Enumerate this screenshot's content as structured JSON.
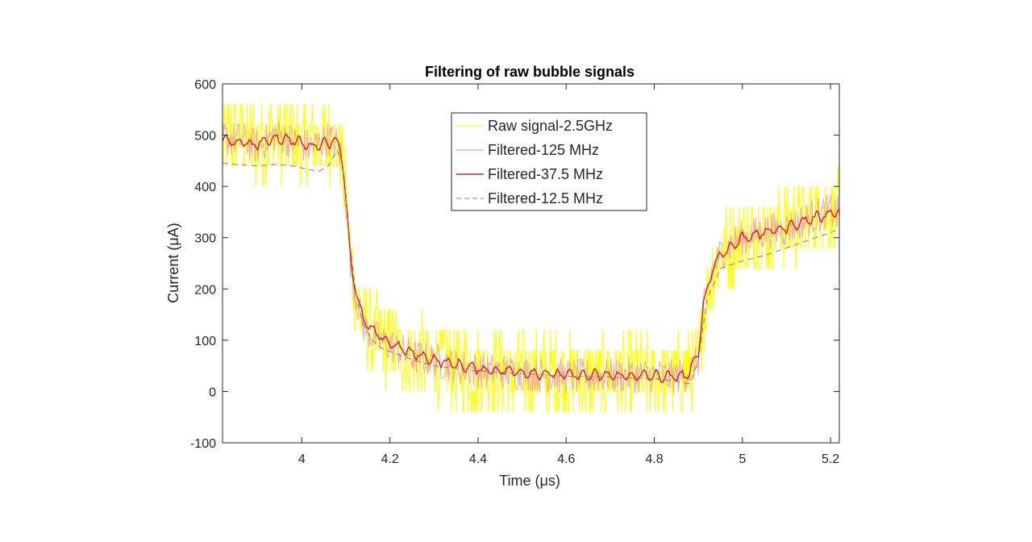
{
  "chart_data": {
    "type": "line",
    "title": "Filtering of raw bubble signals",
    "xlabel": "Time (μs)",
    "ylabel": "Current (μA)",
    "xlim": [
      3.82,
      5.22
    ],
    "ylim": [
      -100,
      600
    ],
    "xticks": [
      {
        "value": 4.0,
        "label": "4"
      },
      {
        "value": 4.2,
        "label": "4.2"
      },
      {
        "value": 4.4,
        "label": "4.4"
      },
      {
        "value": 4.6,
        "label": "4.6"
      },
      {
        "value": 4.8,
        "label": "4.8"
      },
      {
        "value": 5.0,
        "label": "5"
      },
      {
        "value": 5.2,
        "label": "5.2"
      }
    ],
    "yticks": [
      {
        "value": -100,
        "label": "-100"
      },
      {
        "value": 0,
        "label": "0"
      },
      {
        "value": 100,
        "label": "100"
      },
      {
        "value": 200,
        "label": "200"
      },
      {
        "value": 300,
        "label": "300"
      },
      {
        "value": 400,
        "label": "400"
      },
      {
        "value": 500,
        "label": "500"
      },
      {
        "value": 600,
        "label": "600"
      }
    ],
    "grid": false,
    "legend_position": "top-center",
    "series": [
      {
        "name": "Raw signal-2.5GHz",
        "color": "#ffff00",
        "style": "solid",
        "x": [
          3.82,
          3.86,
          3.9,
          3.94,
          3.98,
          4.02,
          4.06,
          4.08,
          4.09,
          4.1,
          4.11,
          4.12,
          4.13,
          4.14,
          4.16,
          4.18,
          4.2,
          4.25,
          4.3,
          4.35,
          4.4,
          4.5,
          4.6,
          4.7,
          4.8,
          4.85,
          4.88,
          4.9,
          4.91,
          4.93,
          4.95,
          4.98,
          5.0,
          5.05,
          5.1,
          5.15,
          5.2,
          5.22
        ],
        "y": [
          490,
          500,
          480,
          500,
          490,
          480,
          490,
          480,
          460,
          380,
          260,
          200,
          160,
          130,
          110,
          100,
          90,
          70,
          60,
          50,
          40,
          35,
          30,
          30,
          30,
          30,
          40,
          60,
          150,
          230,
          270,
          290,
          300,
          310,
          320,
          340,
          350,
          340
        ]
      },
      {
        "name": "Filtered-125 MHz",
        "color": "#f0a8a0",
        "style": "solid",
        "x": [
          3.82,
          3.86,
          3.9,
          3.94,
          3.98,
          4.02,
          4.06,
          4.08,
          4.09,
          4.1,
          4.11,
          4.12,
          4.13,
          4.14,
          4.16,
          4.18,
          4.2,
          4.25,
          4.3,
          4.35,
          4.4,
          4.5,
          4.6,
          4.7,
          4.8,
          4.85,
          4.88,
          4.9,
          4.91,
          4.93,
          4.95,
          4.98,
          5.0,
          5.05,
          5.1,
          5.15,
          5.2,
          5.22
        ],
        "y": [
          495,
          492,
          478,
          502,
          488,
          476,
          494,
          482,
          455,
          375,
          255,
          198,
          158,
          128,
          110,
          98,
          92,
          68,
          62,
          48,
          42,
          36,
          29,
          31,
          31,
          28,
          38,
          62,
          150,
          232,
          268,
          292,
          298,
          312,
          318,
          338,
          352,
          344
        ]
      },
      {
        "name": "Filtered-37.5 MHz",
        "color": "#d42020",
        "style": "solid",
        "x": [
          3.82,
          3.86,
          3.9,
          3.94,
          3.98,
          4.02,
          4.06,
          4.08,
          4.09,
          4.1,
          4.11,
          4.12,
          4.13,
          4.14,
          4.16,
          4.18,
          4.2,
          4.25,
          4.3,
          4.35,
          4.4,
          4.5,
          4.6,
          4.7,
          4.8,
          4.85,
          4.88,
          4.9,
          4.91,
          4.93,
          4.95,
          4.98,
          5.0,
          5.05,
          5.1,
          5.15,
          5.2,
          5.22
        ],
        "y": [
          490,
          485,
          482,
          495,
          490,
          478,
          487,
          488,
          470,
          380,
          260,
          210,
          165,
          140,
          118,
          105,
          95,
          74,
          62,
          52,
          44,
          38,
          32,
          31,
          30,
          28,
          35,
          75,
          160,
          235,
          268,
          285,
          300,
          310,
          320,
          335,
          348,
          352
        ]
      },
      {
        "name": "Filtered-12.5 MHz",
        "color": "#808080",
        "style": "dashed",
        "x": [
          3.82,
          3.86,
          3.9,
          3.94,
          3.98,
          4.02,
          4.04,
          4.06,
          4.08,
          4.09,
          4.1,
          4.11,
          4.12,
          4.13,
          4.14,
          4.16,
          4.18,
          4.2,
          4.25,
          4.3,
          4.4,
          4.5,
          4.6,
          4.7,
          4.8,
          4.85,
          4.88,
          4.9,
          4.92,
          4.95,
          5.0,
          5.05,
          5.1,
          5.15,
          5.2,
          5.22
        ],
        "y": [
          445,
          442,
          440,
          443,
          440,
          432,
          430,
          440,
          470,
          450,
          380,
          280,
          210,
          160,
          130,
          100,
          85,
          78,
          62,
          50,
          40,
          35,
          30,
          28,
          25,
          20,
          15,
          60,
          180,
          240,
          255,
          265,
          280,
          295,
          310,
          318
        ]
      }
    ]
  }
}
